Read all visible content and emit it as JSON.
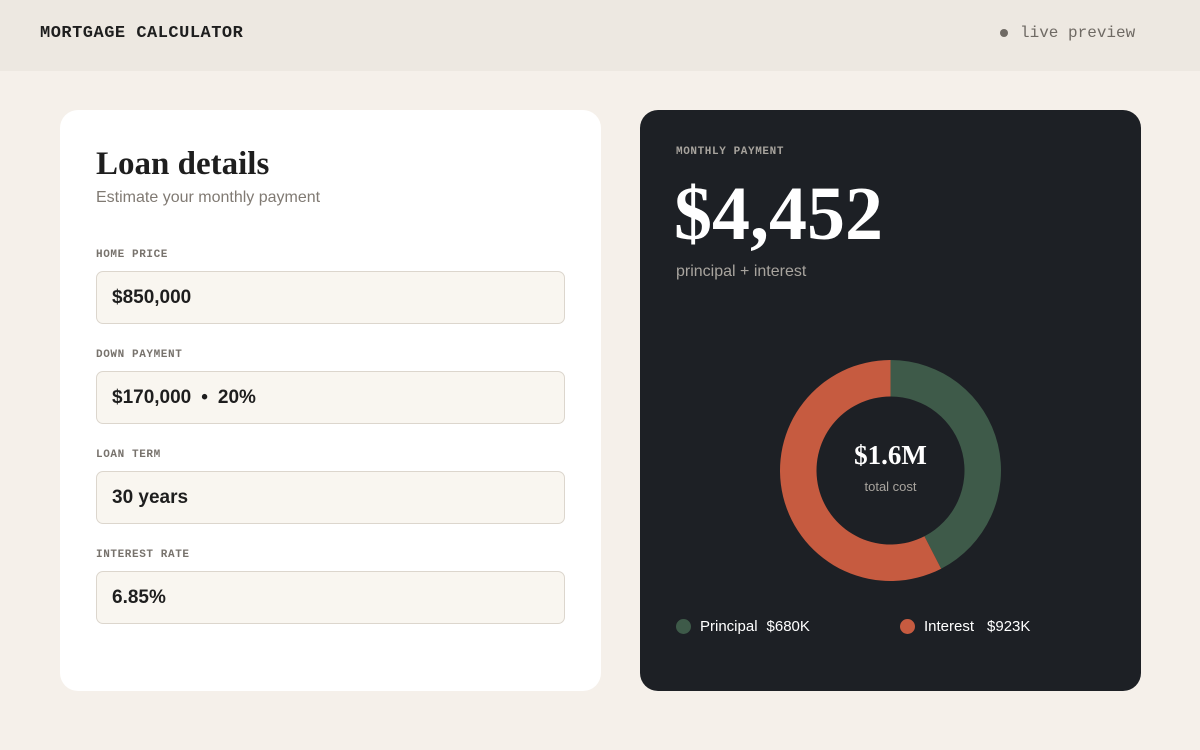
{
  "header": {
    "title": "MORTGAGE CALCULATOR",
    "status": "live preview"
  },
  "loan": {
    "title": "Loan details",
    "subtitle": "Estimate your monthly payment",
    "fields": {
      "home_price": {
        "label": "HOME PRICE",
        "value": "$850,000"
      },
      "down_payment": {
        "label": "DOWN PAYMENT",
        "value": "$170,000",
        "separator": "•",
        "percent": "20%"
      },
      "loan_term": {
        "label": "LOAN TERM",
        "value": "30 years"
      },
      "interest_rate": {
        "label": "INTEREST RATE",
        "value": "6.85%"
      }
    }
  },
  "summary": {
    "label": "MONTHLY PAYMENT",
    "value": "$4,452",
    "sub": "principal + interest",
    "total_value": "$1.6M",
    "total_label": "total cost",
    "legend": [
      {
        "name": "Principal",
        "value": "$680K",
        "color": "#3e5a49"
      },
      {
        "name": "Interest",
        "value": "$923K",
        "color": "#c65b40"
      }
    ]
  },
  "chart_data": {
    "type": "pie",
    "categories": [
      "Principal",
      "Interest"
    ],
    "values": [
      680,
      923
    ],
    "title": "",
    "colors": [
      "#3e5a49",
      "#c65b40"
    ]
  }
}
